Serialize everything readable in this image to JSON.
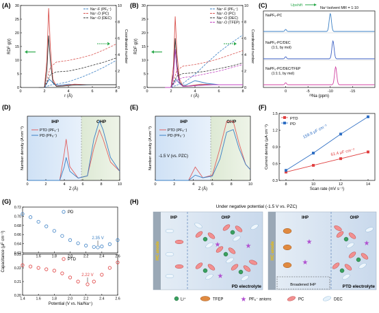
{
  "figure": {
    "panels": {
      "A": {
        "label": "(A)"
      },
      "B": {
        "label": "(B)"
      },
      "C": {
        "label": "(C)"
      },
      "D": {
        "label": "(D)"
      },
      "E": {
        "label": "(E)"
      },
      "F": {
        "label": "(F)"
      },
      "G": {
        "label": "(G)"
      },
      "H": {
        "label": "(H)"
      }
    }
  },
  "chart_data": [
    {
      "panel": "A",
      "type": "line",
      "xlabel": "r (Å)",
      "ylabel": "RDF g(r)",
      "y2label": "Coordinated number",
      "xlim": [
        0,
        8
      ],
      "ylim": [
        0,
        30
      ],
      "y2lim": [
        0,
        10
      ],
      "xticks": [
        "0",
        "2",
        "4",
        "6",
        "8"
      ],
      "yticks": [
        "0",
        "5",
        "10",
        "15",
        "20",
        "25",
        "30"
      ],
      "y2ticks": [
        "0",
        "2",
        "4",
        "6",
        "8",
        "10"
      ],
      "legend": [
        "Na⁺-F (PF₆⁻)",
        "Na⁺-O (PC)",
        "Na⁺-O (DEC)"
      ],
      "colors": [
        "#3a7fc4",
        "#d9534f",
        "#333333"
      ],
      "series": [
        {
          "name": "Na⁺-F (PF₆⁻)",
          "x": [
            1.5,
            2.0,
            2.2,
            2.4,
            2.6,
            2.8,
            3.2,
            4.0,
            5.0,
            6.0,
            8.0
          ],
          "values": [
            0,
            0,
            1.5,
            3.0,
            2.2,
            1.2,
            0.8,
            1.2,
            0.9,
            1.0,
            1.0
          ]
        },
        {
          "name": "Na⁺-O (PC)",
          "x": [
            1.5,
            2.0,
            2.2,
            2.35,
            2.5,
            2.7,
            3.0,
            3.5,
            4.5,
            5.5,
            8.0
          ],
          "values": [
            0,
            0,
            10,
            29,
            14,
            3,
            0.5,
            0.6,
            1.2,
            1.0,
            1.0
          ]
        },
        {
          "name": "Na⁺-O (DEC)",
          "x": [
            1.5,
            2.0,
            2.2,
            2.35,
            2.5,
            2.7,
            3.0,
            3.5,
            4.5,
            5.5,
            8.0
          ],
          "values": [
            0,
            0,
            6,
            19,
            9,
            2,
            0.4,
            0.5,
            0.9,
            1.0,
            1.0
          ]
        }
      ],
      "cn_series": [
        {
          "name": "Na⁺-F (PF₆⁻)",
          "x": [
            2.0,
            2.5,
            3.0,
            4.0,
            5.0,
            6.0,
            7.0,
            8.0
          ],
          "values": [
            0,
            0.3,
            0.4,
            0.7,
            1.2,
            1.8,
            2.5,
            3.3
          ]
        },
        {
          "name": "Na⁺-O (PC)",
          "x": [
            2.0,
            2.5,
            3.0,
            4.0,
            5.0,
            6.0,
            7.0,
            8.0
          ],
          "values": [
            0,
            2.5,
            3.1,
            3.3,
            3.6,
            4.0,
            4.6,
            5.3
          ]
        },
        {
          "name": "Na⁺-O (DEC)",
          "x": [
            2.0,
            2.5,
            3.0,
            4.0,
            5.0,
            6.0,
            7.0,
            8.0
          ],
          "values": [
            0,
            1.6,
            1.9,
            2.0,
            2.3,
            2.7,
            3.1,
            3.6
          ]
        }
      ]
    },
    {
      "panel": "B",
      "type": "line",
      "xlabel": "r (Å)",
      "ylabel": "RDF g(r)",
      "y2label": "Coordinated number",
      "xlim": [
        0,
        8
      ],
      "ylim": [
        0,
        30
      ],
      "y2lim": [
        0,
        10
      ],
      "xticks": [
        "0",
        "2",
        "4",
        "6",
        "8"
      ],
      "yticks": [
        "0",
        "5",
        "10",
        "15",
        "20",
        "25",
        "30"
      ],
      "y2ticks": [
        "0",
        "2",
        "4",
        "6",
        "8",
        "10"
      ],
      "legend": [
        "Na⁺-F (PF₆⁻)",
        "Na⁺-O (PC)",
        "Na⁺-O (DEC)",
        "Na⁺-O (TFEP)"
      ],
      "colors": [
        "#3a7fc4",
        "#d9534f",
        "#333333",
        "#c040c0"
      ],
      "series": [
        {
          "name": "Na⁺-F (PF₆⁻)",
          "x": [
            1.5,
            2.0,
            2.2,
            2.4,
            2.6,
            2.8,
            3.2,
            4.0,
            5.0,
            6.0,
            8.0
          ],
          "values": [
            0,
            0,
            1.5,
            3.0,
            2.0,
            1.0,
            0.8,
            2.5,
            1.5,
            1.0,
            1.0
          ]
        },
        {
          "name": "Na⁺-O (PC)",
          "x": [
            1.5,
            2.0,
            2.2,
            2.35,
            2.5,
            2.7,
            3.0,
            3.5,
            4.5,
            5.5,
            8.0
          ],
          "values": [
            0,
            0,
            8,
            26,
            12,
            3,
            0.5,
            0.6,
            1.2,
            1.0,
            1.0
          ]
        },
        {
          "name": "Na⁺-O (DEC)",
          "x": [
            1.5,
            2.0,
            2.2,
            2.35,
            2.5,
            2.7,
            3.0,
            3.5,
            4.5,
            5.5,
            8.0
          ],
          "values": [
            0,
            0,
            5,
            18,
            8,
            2,
            0.4,
            0.5,
            0.9,
            1.0,
            1.0
          ]
        },
        {
          "name": "Na⁺-O (TFEP)",
          "x": [
            1.5,
            2.0,
            2.2,
            2.35,
            2.5,
            2.7,
            3.0,
            3.5,
            4.5,
            5.5,
            8.0
          ],
          "values": [
            0,
            0,
            4,
            14,
            6,
            1.5,
            0.4,
            0.5,
            0.8,
            1.0,
            1.0
          ]
        }
      ],
      "cn_series": [
        {
          "name": "Na⁺-F (PF₆⁻)",
          "x": [
            2.0,
            2.5,
            3.0,
            4.0,
            5.0,
            6.0,
            7.0,
            8.0
          ],
          "values": [
            0,
            0.3,
            0.5,
            1.6,
            3.0,
            4.3,
            5.4,
            6.4
          ]
        },
        {
          "name": "Na⁺-O (PC)",
          "x": [
            2.0,
            2.5,
            3.0,
            4.0,
            5.0,
            6.0,
            7.0,
            8.0
          ],
          "values": [
            0,
            2.1,
            2.6,
            2.8,
            3.1,
            3.5,
            4.0,
            4.5
          ]
        },
        {
          "name": "Na⁺-O (DEC)",
          "x": [
            2.0,
            2.5,
            3.0,
            4.0,
            5.0,
            6.0,
            7.0,
            8.0
          ],
          "values": [
            0,
            1.4,
            1.7,
            1.8,
            2.0,
            2.3,
            2.6,
            3.0
          ]
        },
        {
          "name": "Na⁺-O (TFEP)",
          "x": [
            2.0,
            2.5,
            3.0,
            4.0,
            5.0,
            6.0,
            7.0,
            8.0
          ],
          "values": [
            0,
            0.9,
            1.2,
            1.4,
            1.7,
            2.0,
            2.4,
            2.8
          ]
        }
      ]
    },
    {
      "panel": "C",
      "type": "line",
      "xlabel": "²³Na (ppm)",
      "xlim": [
        5,
        -20
      ],
      "xticks": [
        "0",
        "-5",
        "-10",
        "-15"
      ],
      "annotations": {
        "upshift": "Upshift",
        "ratio": "Na⁺/solvent MR = 1:10"
      },
      "traces": [
        {
          "name": "NaPF₆-PC",
          "color": "#3a7fc4",
          "peak": -10.0
        },
        {
          "name": "NaPF₆-PC/DEC",
          "sub": "(1:1, by mol)",
          "color": "#3b5fc4",
          "peak": -10.6
        },
        {
          "name": "NaPF₆-PC/DEC/TFEP",
          "sub": "(1:1:1, by mol)",
          "color": "#d040a0",
          "peak": -11.2
        }
      ]
    },
    {
      "panel": "D",
      "type": "line",
      "xlabel": "Z (Å)",
      "ylabel": "Number density (A nm⁻³)",
      "xlim": [
        0,
        10
      ],
      "ylim": [
        0,
        1.4
      ],
      "xticks": [
        "0",
        "2",
        "4",
        "6",
        "8",
        "10"
      ],
      "regions": [
        "IHP",
        "OHP"
      ],
      "legend": [
        "PTD (PF₆⁻)",
        "PD (PF₆⁻)"
      ],
      "colors": [
        "#e06060",
        "#3a7fc4"
      ],
      "series": [
        {
          "name": "PTD (PF₆⁻)",
          "x": [
            0,
            3.5,
            4.0,
            4.2,
            4.6,
            5.5,
            6.5,
            7.2,
            7.8,
            8.2,
            9.0,
            10.0
          ],
          "values": [
            0,
            0,
            0.6,
            0.9,
            0.3,
            0.05,
            0.1,
            0.7,
            1.1,
            0.9,
            0.4,
            0.2
          ]
        },
        {
          "name": "PD (PF₆⁻)",
          "x": [
            0,
            3.5,
            4.0,
            4.2,
            4.6,
            5.5,
            6.5,
            7.2,
            7.8,
            8.2,
            9.0,
            10.0
          ],
          "values": [
            0,
            0,
            0.3,
            0.5,
            0.2,
            0.05,
            0.1,
            0.9,
            1.3,
            1.1,
            0.5,
            0.2
          ]
        }
      ]
    },
    {
      "panel": "E",
      "type": "line",
      "xlabel": "Z (Å)",
      "ylabel": "Number density (A nm⁻³)",
      "xlim": [
        0,
        10
      ],
      "ylim": [
        0,
        1.2
      ],
      "xticks": [
        "0",
        "2",
        "4",
        "6",
        "8",
        "10"
      ],
      "regions": [
        "IHP",
        "OHP"
      ],
      "annotation": "-1.5 V (vs. PZC)",
      "legend": [
        "PTD (PF₆⁻)",
        "PD (PF₆⁻)"
      ],
      "colors": [
        "#e06060",
        "#3a7fc4"
      ],
      "series": [
        {
          "name": "PTD (PF₆⁻)",
          "x": [
            0,
            3.5,
            4.2,
            5.0,
            6.0,
            6.8,
            7.5,
            8.2,
            8.8,
            9.5,
            10.0
          ],
          "values": [
            0,
            0,
            0.25,
            0.05,
            0.1,
            0.6,
            1.1,
            1.1,
            0.7,
            0.3,
            0.2
          ]
        },
        {
          "name": "PD (PF₆⁻)",
          "x": [
            0,
            3.5,
            4.2,
            5.0,
            6.0,
            6.8,
            7.5,
            8.2,
            8.8,
            9.5,
            10.0
          ],
          "values": [
            0,
            0,
            0.1,
            0.05,
            0.08,
            0.4,
            0.9,
            0.95,
            0.6,
            0.3,
            0.2
          ]
        }
      ]
    },
    {
      "panel": "F",
      "type": "scatter",
      "xlabel": "Scan rate (mV s⁻¹)",
      "ylabel": "Current density (μA cm⁻²)",
      "xlim": [
        8,
        14
      ],
      "ylim": [
        0.3,
        1.5
      ],
      "xticks": [
        "8",
        "10",
        "12",
        "14"
      ],
      "yticks": [
        "0.3",
        "0.6",
        "0.9",
        "1.2",
        "1.5"
      ],
      "legend": [
        "PTD",
        "PD"
      ],
      "colors": [
        "#e04040",
        "#2f6fc4"
      ],
      "series": [
        {
          "name": "PTD",
          "x": [
            8,
            10,
            12,
            14
          ],
          "values": [
            0.45,
            0.57,
            0.69,
            0.81
          ],
          "slope_label": "61.4 μF cm⁻²"
        },
        {
          "name": "PD",
          "x": [
            8,
            10,
            12,
            14
          ],
          "values": [
            0.48,
            0.79,
            1.13,
            1.44
          ],
          "slope_label": "159.9 μF cm⁻²"
        }
      ]
    },
    {
      "panel": "G",
      "type": "scatter",
      "xlabel": "Potential (V vs. Na/Na⁺)",
      "ylabel": "Capacitance (μF cm⁻²)",
      "subplots": [
        {
          "name": "PD",
          "color": "#3a7fc4",
          "xlim": [
            1.4,
            2.6
          ],
          "ylim": [
            0.62,
            0.72
          ],
          "yticks": [
            "0.62",
            "0.64",
            "0.66",
            "0.68",
            "0.70",
            "0.72"
          ],
          "xticks": [
            "1.6",
            "1.8",
            "2.0",
            "2.2",
            "2.4",
            "2.6"
          ],
          "minimum_label": "2.35 V",
          "x": [
            1.4,
            1.5,
            1.6,
            1.7,
            1.8,
            1.9,
            2.0,
            2.1,
            2.2,
            2.3,
            2.35,
            2.4,
            2.5,
            2.6
          ],
          "values": [
            0.705,
            0.698,
            0.688,
            0.678,
            0.668,
            0.657,
            0.648,
            0.641,
            0.636,
            0.633,
            0.632,
            0.634,
            0.639,
            0.648
          ]
        },
        {
          "name": "PTD",
          "color": "#e04040",
          "xlim": [
            1.4,
            2.6
          ],
          "ylim": [
            0.2,
            0.23
          ],
          "yticks": [
            "0.20",
            "0.21",
            "0.22",
            "0.23"
          ],
          "xticks": [
            "1.4",
            "1.6",
            "1.8",
            "2.0",
            "2.2",
            "2.4",
            "2.6"
          ],
          "minimum_label": "2.22 V",
          "x": [
            1.4,
            1.5,
            1.6,
            1.7,
            1.8,
            1.9,
            2.0,
            2.1,
            2.22,
            2.3,
            2.4,
            2.5,
            2.6
          ],
          "values": [
            0.222,
            0.221,
            0.22,
            0.219,
            0.218,
            0.216,
            0.213,
            0.21,
            0.208,
            0.21,
            0.215,
            0.22,
            0.224
          ]
        }
      ]
    }
  ],
  "schematic": {
    "title": "Under negative potential (-1.5 V vs. PZC)",
    "left": {
      "anode": "HC anode",
      "ihp": "IHP",
      "ohp": "OHP",
      "caption": "PD electrolyte"
    },
    "right": {
      "anode": "HC anode",
      "ihp": "IHP",
      "ohp": "OHP",
      "caption": "PTD electrolyte",
      "broadened": "Broadened IHP"
    },
    "legend": [
      {
        "symbol": "li",
        "label": "Li⁺"
      },
      {
        "symbol": "tfep",
        "label": "TFEP"
      },
      {
        "symbol": "pf6",
        "label": "PF₆⁻ anions"
      },
      {
        "symbol": "pc",
        "label": "PC"
      },
      {
        "symbol": "dec",
        "label": "DEC"
      }
    ]
  }
}
